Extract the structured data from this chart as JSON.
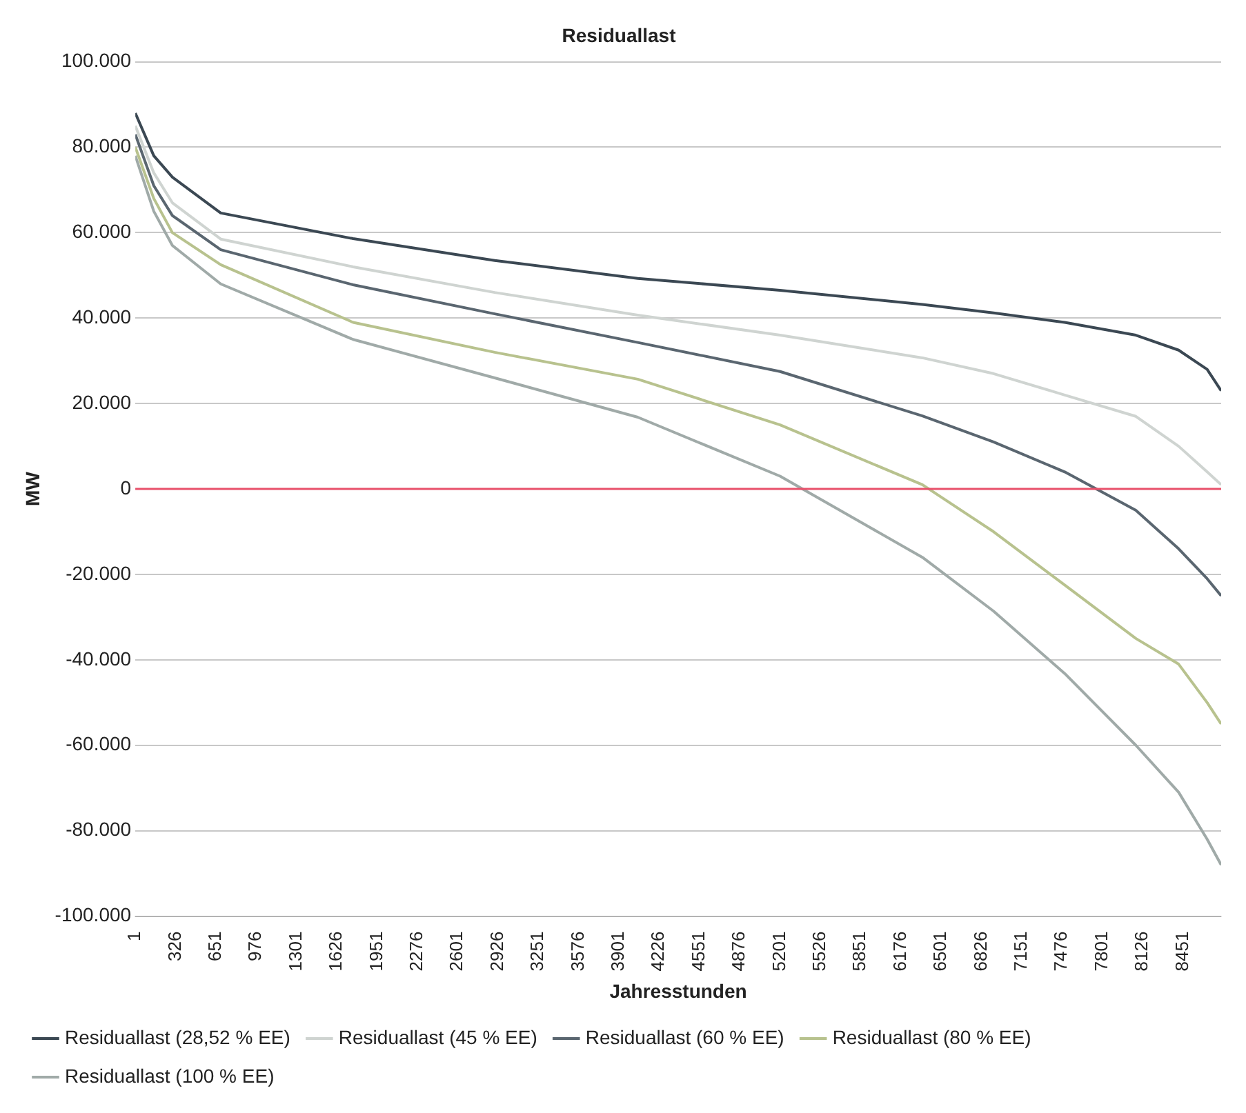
{
  "chart_data": {
    "type": "line",
    "title": "Residuallast",
    "xlabel": "Jahresstunden",
    "ylabel": "MW",
    "xlim": [
      1,
      8760
    ],
    "xticks": [
      1,
      326,
      651,
      976,
      1301,
      1626,
      1951,
      2276,
      2601,
      2926,
      3251,
      3576,
      3901,
      4226,
      4551,
      4876,
      5201,
      5526,
      5851,
      6176,
      6501,
      6826,
      7151,
      7476,
      7801,
      8126,
      8451
    ],
    "ylim": [
      -100000,
      100000
    ],
    "yticks": [
      {
        "value": -100000,
        "label": "-100.000"
      },
      {
        "value": -80000,
        "label": "-80.000"
      },
      {
        "value": -60000,
        "label": "-60.000"
      },
      {
        "value": -40000,
        "label": "-40.000"
      },
      {
        "value": -20000,
        "label": "-20.000"
      },
      {
        "value": 0,
        "label": "0"
      },
      {
        "value": 20000,
        "label": "20.000"
      },
      {
        "value": 40000,
        "label": "40.000"
      },
      {
        "value": 60000,
        "label": "60.000"
      },
      {
        "value": 80000,
        "label": "80.000"
      },
      {
        "value": 100000,
        "label": "100.000"
      }
    ],
    "x": [
      1,
      150,
      300,
      690,
      1758,
      2900,
      4054,
      5202,
      6350,
      6924,
      7498,
      8072,
      8417,
      8647,
      8760
    ],
    "series": [
      {
        "name": "Residuallast (28,52 % EE)",
        "color": "#3b4853",
        "values": [
          88000,
          78000,
          73000,
          64600,
          58600,
          53500,
          49300,
          46500,
          43200,
          41200,
          39000,
          36000,
          32500,
          28000,
          23000
        ]
      },
      {
        "name": "Residuallast (45 % EE)",
        "color": "#cfd4d1",
        "values": [
          85000,
          74000,
          67000,
          58500,
          52000,
          46000,
          40700,
          36000,
          30700,
          27000,
          22000,
          17000,
          10000,
          4000,
          1000
        ]
      },
      {
        "name": "Residuallast (60 % EE)",
        "color": "#5a6670",
        "values": [
          83000,
          71000,
          64000,
          56000,
          47800,
          41000,
          34300,
          27500,
          17100,
          11000,
          4000,
          -5000,
          -14000,
          -21000,
          -25000
        ]
      },
      {
        "name": "Residuallast (80 % EE)",
        "color": "#b8c28e",
        "values": [
          80000,
          68000,
          60000,
          52500,
          39000,
          32000,
          25700,
          15000,
          1000,
          -10000,
          -22500,
          -35000,
          -41000,
          -50000,
          -55000
        ]
      },
      {
        "name": "Residuallast (100 % EE)",
        "color": "#a0aaa8",
        "values": [
          78000,
          65000,
          57000,
          48000,
          35000,
          26000,
          16800,
          3000,
          -16000,
          -28600,
          -43200,
          -60000,
          -71000,
          -82000,
          -88000
        ]
      }
    ],
    "ref_lines": [
      {
        "axis": "y",
        "value": 0,
        "color": "#e8506a"
      }
    ],
    "grid": "y",
    "legend": "bottom",
    "marker": "none",
    "line_style": "solid"
  }
}
